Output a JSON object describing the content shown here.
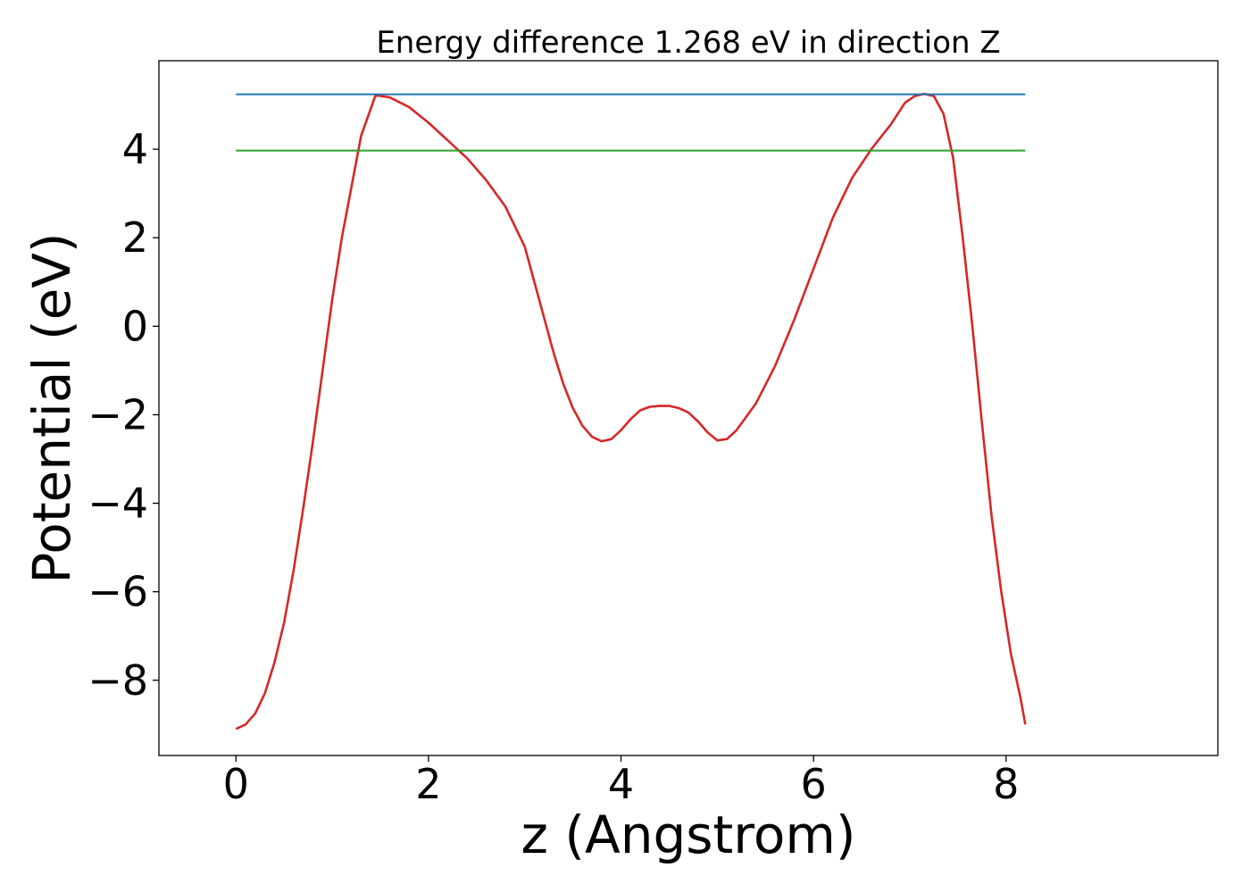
{
  "chart_data": {
    "type": "line",
    "title": "Energy difference 1.268 eV in direction Z",
    "xlabel": "z (Angstrom)",
    "ylabel": "Potential (eV)",
    "xlim": [
      -0.8,
      10.2
    ],
    "ylim": [
      -9.7,
      6.0
    ],
    "xticks": [
      0,
      2,
      4,
      6,
      8
    ],
    "xtick_labels": [
      "0",
      "2",
      "4",
      "6",
      "8"
    ],
    "yticks": [
      -8,
      -6,
      -4,
      -2,
      0,
      2,
      4
    ],
    "ytick_labels": [
      "−8",
      "−6",
      "−4",
      "−2",
      "0",
      "2",
      "4"
    ],
    "grid": false,
    "series": [
      {
        "color": "#d62728",
        "style": "line",
        "x": [
          0.0,
          0.1,
          0.2,
          0.3,
          0.4,
          0.5,
          0.6,
          0.7,
          0.8,
          0.9,
          1.0,
          1.1,
          1.2,
          1.3,
          1.45,
          1.6,
          1.8,
          2.0,
          2.2,
          2.4,
          2.6,
          2.8,
          3.0,
          3.1,
          3.2,
          3.3,
          3.4,
          3.5,
          3.6,
          3.7,
          3.8,
          3.9,
          4.0,
          4.1,
          4.2,
          4.3,
          4.4,
          4.5,
          4.6,
          4.7,
          4.8,
          4.9,
          5.0,
          5.1,
          5.2,
          5.4,
          5.6,
          5.8,
          6.0,
          6.2,
          6.4,
          6.6,
          6.8,
          6.95,
          7.05,
          7.15,
          7.25,
          7.35,
          7.45,
          7.55,
          7.65,
          7.75,
          7.85,
          7.95,
          8.05,
          8.15,
          8.2
        ],
        "y": [
          -9.1,
          -9.0,
          -8.75,
          -8.3,
          -7.6,
          -6.7,
          -5.5,
          -4.1,
          -2.6,
          -1.0,
          0.6,
          2.0,
          3.15,
          4.3,
          5.22,
          5.17,
          4.95,
          4.6,
          4.2,
          3.8,
          3.3,
          2.7,
          1.8,
          1.0,
          0.2,
          -0.6,
          -1.3,
          -1.85,
          -2.25,
          -2.5,
          -2.6,
          -2.55,
          -2.35,
          -2.1,
          -1.9,
          -1.82,
          -1.8,
          -1.8,
          -1.85,
          -1.95,
          -2.15,
          -2.4,
          -2.58,
          -2.55,
          -2.35,
          -1.75,
          -0.9,
          0.15,
          1.3,
          2.45,
          3.35,
          4.0,
          4.55,
          5.05,
          5.2,
          5.25,
          5.2,
          4.8,
          3.8,
          2.0,
          0.0,
          -2.2,
          -4.3,
          -6.0,
          -7.4,
          -8.4,
          -9.0
        ]
      },
      {
        "color": "#1f77b4",
        "style": "hline",
        "x": [
          0.0,
          8.2
        ],
        "y": [
          5.24,
          5.24
        ]
      },
      {
        "color": "#2ca02c",
        "style": "hline",
        "x": [
          0.0,
          8.2
        ],
        "y": [
          3.97,
          3.97
        ]
      }
    ]
  }
}
